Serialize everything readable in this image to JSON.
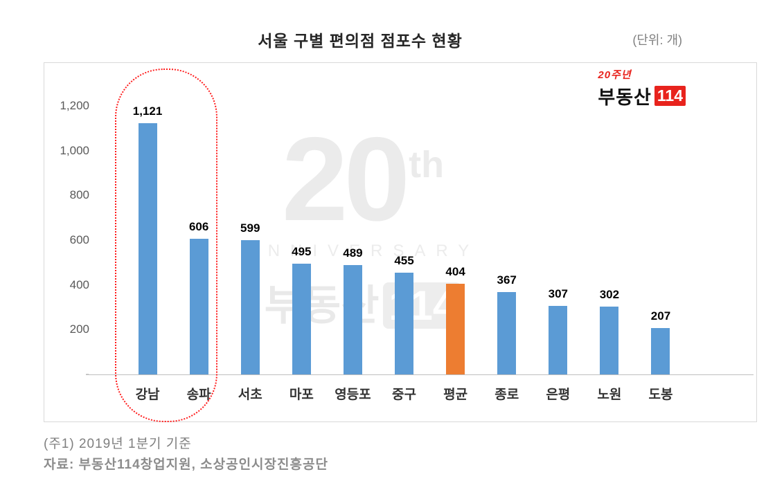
{
  "title": "서울 구별 편의점 점포수 현황",
  "unit_label": "(단위: 개)",
  "logo": {
    "anniversary": "20주년",
    "brand": "부동산",
    "number": "114"
  },
  "watermark": {
    "number": "20",
    "suffix": "th",
    "anniversary": "ANNIVERSARY",
    "brand": "부동산",
    "brand_number": "114"
  },
  "footnotes": [
    "(주1) 2019년 1분기 기준",
    "자료: 부동산114창업지원, 소상공인시장진흥공단"
  ],
  "chart_data": {
    "type": "bar",
    "title": "서울 구별 편의점 점포수 현황",
    "unit": "개",
    "categories": [
      "강남",
      "송파",
      "서초",
      "마포",
      "영등포",
      "중구",
      "평균",
      "종로",
      "은평",
      "노원",
      "도봉"
    ],
    "values": [
      1121,
      606,
      599,
      495,
      489,
      455,
      404,
      367,
      307,
      302,
      207
    ],
    "labels": [
      "1,121",
      "606",
      "599",
      "495",
      "489",
      "455",
      "404",
      "367",
      "307",
      "302",
      "207"
    ],
    "average_category": "평균",
    "highlighted_categories": [
      "강남",
      "송파"
    ],
    "ylim": [
      0,
      1200
    ],
    "ytick_labels": [
      "-",
      "200",
      "400",
      "600",
      "800",
      "1,000",
      "1,200"
    ],
    "ytick_values": [
      0,
      200,
      400,
      600,
      800,
      1000,
      1200
    ],
    "grid": false,
    "legend": "none",
    "colors": {
      "bar": "#5B9BD5",
      "average_bar": "#ED7D31",
      "highlight_border": "#FF1A1A"
    }
  }
}
